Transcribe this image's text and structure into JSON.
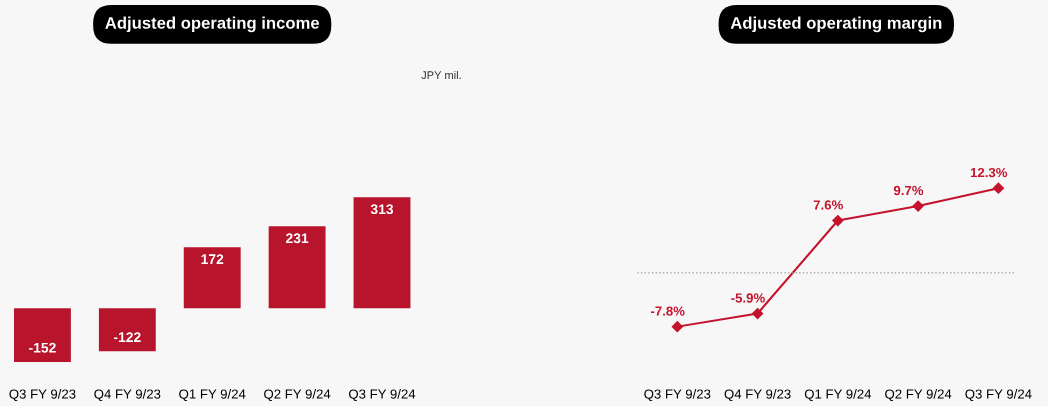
{
  "chart_data": [
    {
      "type": "bar",
      "title": "Adjusted operating income",
      "annotations": [
        "JPY mil."
      ],
      "categories": [
        "Q3 FY 9/23",
        "Q4 FY 9/23",
        "Q1 FY 9/24",
        "Q2 FY 9/24",
        "Q3 FY 9/24"
      ],
      "values": [
        -152,
        -122,
        172,
        231,
        313
      ],
      "color": "#b8142b",
      "data_labels": true,
      "tick_labels": "x"
    },
    {
      "type": "line",
      "title": "Adjusted operating margin",
      "categories": [
        "Q3 FY 9/23",
        "Q4 FY 9/23",
        "Q1 FY 9/24",
        "Q2 FY 9/24",
        "Q3 FY 9/24"
      ],
      "values": [
        -7.8,
        -5.9,
        7.6,
        9.7,
        12.3
      ],
      "color": "#c4142c",
      "marker": "diamond",
      "line_style": "solid",
      "data_labels": true,
      "value_labels": [
        "-7.8%",
        "-5.9%",
        "7.6%",
        "9.7%",
        "12.3%"
      ],
      "tick_labels": "x",
      "ref_lines": [
        {
          "axis": "y",
          "value": 0,
          "color": "#999999",
          "line_style": "dotted"
        }
      ]
    }
  ]
}
